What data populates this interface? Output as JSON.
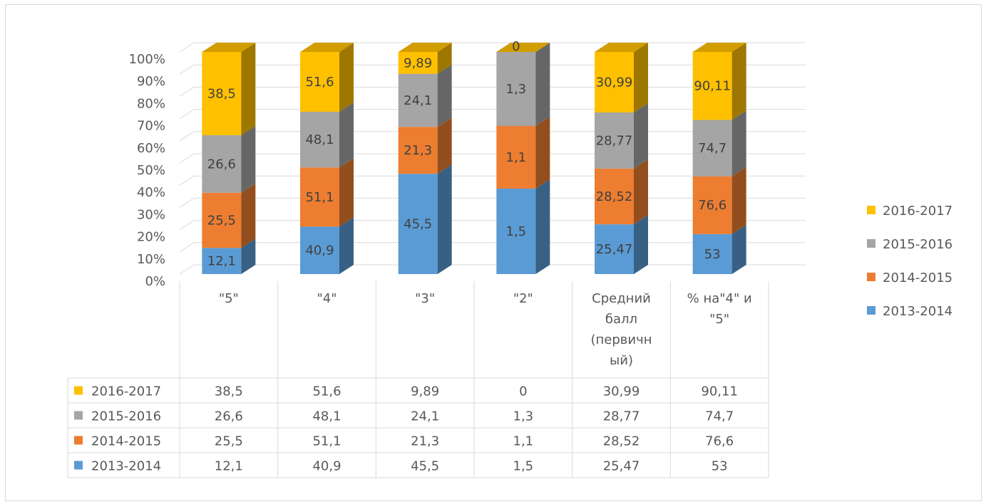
{
  "chart_data": {
    "type": "bar",
    "stacked": "percent",
    "three_d": true,
    "data_table": true,
    "categories": [
      [
        "\"5\""
      ],
      [
        "\"4\""
      ],
      [
        "\"3\""
      ],
      [
        "\"2\""
      ],
      [
        "Средний",
        "балл",
        "(первичн",
        "ый)"
      ],
      [
        "% на\"4\" и",
        "\"5\""
      ]
    ],
    "series": [
      {
        "name": "2013-2014",
        "color": "#5b9bd5",
        "values": [
          12.1,
          40.9,
          45.5,
          1.5,
          25.47,
          53
        ],
        "labels": [
          "12,1",
          "40,9",
          "45,5",
          "1,5",
          "25,47",
          "53"
        ]
      },
      {
        "name": "2014-2015",
        "color": "#ed7d31",
        "values": [
          25.5,
          51.1,
          21.3,
          1.1,
          28.52,
          76.6
        ],
        "labels": [
          "25,5",
          "51,1",
          "21,3",
          "1,1",
          "28,52",
          "76,6"
        ]
      },
      {
        "name": "2015-2016",
        "color": "#a5a5a5",
        "values": [
          26.6,
          48.1,
          24.1,
          1.3,
          28.77,
          74.7
        ],
        "labels": [
          "26,6",
          "48,1",
          "24,1",
          "1,3",
          "28,77",
          "74,7"
        ]
      },
      {
        "name": "2016-2017",
        "color": "#ffc000",
        "values": [
          38.5,
          51.6,
          9.89,
          0,
          30.99,
          90.11
        ],
        "labels": [
          "38,5",
          "51,6",
          "9,89",
          "0",
          "30,99",
          "90,11"
        ]
      }
    ],
    "y_ticks": [
      "0%",
      "10%",
      "20%",
      "30%",
      "40%",
      "50%",
      "60%",
      "70%",
      "80%",
      "90%",
      "100%"
    ],
    "ylim": [
      0,
      100
    ],
    "grid": true,
    "legend_position": "right"
  }
}
